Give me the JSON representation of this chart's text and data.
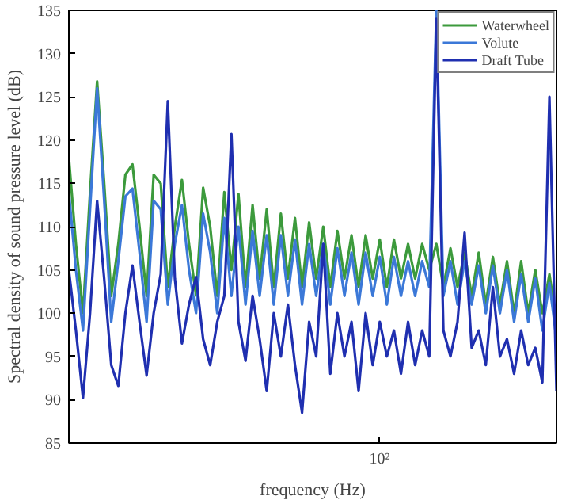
{
  "chart_data": {
    "type": "line",
    "xlabel": "frequency (Hz)",
    "ylabel": "Spectral density of sound pressure level (dB)",
    "grid": false,
    "legend": "top right",
    "line_style": "solid",
    "annotations": [
      "10²"
    ],
    "categories": [
      null,
      null,
      null,
      null,
      null,
      null,
      null,
      null,
      null,
      null,
      null,
      null,
      null,
      null,
      null,
      null,
      null,
      null,
      null,
      null,
      null,
      null,
      null,
      null,
      null,
      null,
      null,
      null,
      null,
      null,
      null,
      null,
      null,
      null,
      null,
      null,
      null,
      null,
      null,
      null,
      null,
      null,
      null,
      null,
      null,
      null,
      null,
      null,
      null,
      null,
      null,
      null,
      null,
      null,
      null,
      null,
      null,
      null,
      null,
      null,
      null,
      null,
      null,
      null,
      null,
      null,
      null,
      null,
      null,
      null
    ],
    "ylim": [
      85,
      135
    ],
    "yticks": [
      85,
      90,
      95,
      100,
      105,
      110,
      115,
      120,
      125,
      130,
      135
    ],
    "series": [
      {
        "name": "Waterwheel",
        "color": "#3c9a3c",
        "values": [
          118,
          108,
          100,
          114,
          126.8,
          115,
          102,
          108,
          116,
          117.2,
          110,
          102,
          116,
          115,
          103,
          110,
          115.4,
          108,
          102,
          114.5,
          110,
          102,
          114,
          105,
          113.8,
          103,
          112.5,
          104,
          112,
          103,
          111.5,
          104,
          111,
          103,
          110.5,
          104,
          110,
          103,
          109.5,
          104,
          109,
          103,
          109,
          104,
          108.5,
          103,
          108.5,
          104,
          108,
          104,
          108,
          105,
          108,
          103,
          107.5,
          103,
          107,
          102,
          107,
          101,
          106.5,
          101,
          106,
          100,
          106,
          100,
          105,
          100,
          104.5,
          99
        ]
      },
      {
        "name": "Volute",
        "color": "#3b78d8",
        "values": [
          114,
          105,
          98,
          112,
          126,
          113,
          99,
          106,
          113.5,
          114.4,
          107,
          99,
          113,
          112,
          101,
          108,
          112.5,
          105,
          100,
          111.5,
          107,
          100,
          111,
          102,
          110,
          101,
          109.5,
          102,
          109,
          101,
          109,
          102,
          108.5,
          101,
          108,
          102,
          108,
          101,
          107.5,
          102,
          107,
          101,
          107,
          102,
          106.5,
          101,
          106.5,
          102,
          106,
          102,
          106,
          103,
          135,
          102,
          106,
          101,
          106,
          101,
          105.5,
          100,
          105.5,
          100,
          105,
          99,
          104.5,
          99,
          104,
          98,
          103.5,
          97
        ]
      },
      {
        "name": "Draft Tube",
        "color": "#1f2fb0",
        "values": [
          105,
          98,
          90.2,
          100,
          113,
          104,
          94,
          91.6,
          100,
          105.5,
          99,
          92.8,
          100,
          104.5,
          124.5,
          104,
          96.5,
          101,
          104.2,
          97,
          94,
          99,
          102,
          120.7,
          99,
          94.5,
          102,
          97,
          91,
          100,
          95,
          101,
          94,
          88.5,
          99,
          95,
          108,
          93,
          100,
          95,
          99,
          91,
          100,
          94,
          99,
          95,
          98,
          93,
          99,
          94,
          98,
          95,
          134,
          98,
          95,
          99,
          109.3,
          96,
          98,
          94,
          103,
          95,
          97,
          93,
          98,
          94,
          96,
          92,
          125,
          91
        ]
      }
    ]
  }
}
